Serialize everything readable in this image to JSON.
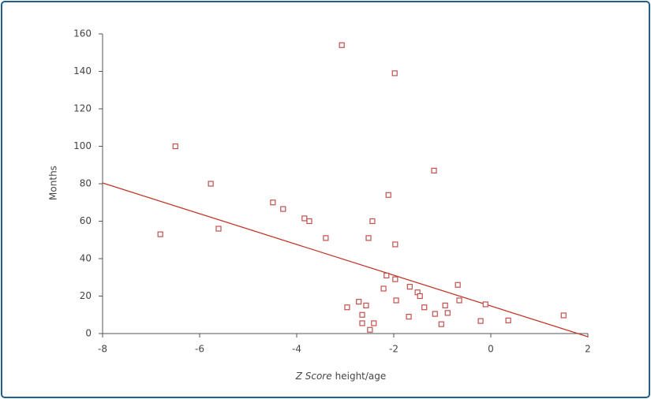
{
  "chart_data": {
    "type": "scatter",
    "ylabel": "Months",
    "xlabel_parts": [
      "Z Score",
      "height/age"
    ],
    "xlim": [
      -8,
      2
    ],
    "xticks": [
      -8,
      -6,
      -4,
      -2,
      0,
      2
    ],
    "ylim": [
      0,
      160
    ],
    "yticks": [
      0,
      20,
      40,
      60,
      80,
      100,
      120,
      140,
      160
    ],
    "color": "#c0504d",
    "line_color": "#c0392b",
    "x": [
      -3.07,
      -1.98,
      -6.5,
      -1.17,
      -5.77,
      -2.11,
      -6.81,
      -5.61,
      -4.49,
      -4.28,
      -3.84,
      -3.74,
      -3.4,
      -2.44,
      -2.52,
      -1.97,
      -2.15,
      -1.97,
      -2.21,
      -1.67,
      -1.51,
      -1.46,
      -0.68,
      -0.65,
      -1.95,
      -1.37,
      -0.94,
      -0.89,
      -1.15,
      -1.69,
      -1.02,
      -0.11,
      -0.21,
      0.36,
      1.5,
      -2.96,
      -2.72,
      -2.57,
      -2.65,
      -2.65,
      -2.41,
      -2.49
    ],
    "y": [
      154,
      139,
      100,
      87,
      80,
      74,
      53,
      56,
      70,
      66.5,
      61.5,
      60,
      51,
      60,
      51,
      47.6,
      31,
      29,
      24,
      25,
      22,
      20,
      26,
      17.7,
      17.7,
      14,
      15,
      11,
      10.5,
      9,
      5,
      15.6,
      6.7,
      7,
      9.7,
      14,
      17,
      15,
      10,
      5.5,
      5.5,
      2
    ],
    "trend_line": {
      "x": [
        -8,
        2
      ],
      "y": [
        80.4,
        -1.7
      ]
    }
  }
}
